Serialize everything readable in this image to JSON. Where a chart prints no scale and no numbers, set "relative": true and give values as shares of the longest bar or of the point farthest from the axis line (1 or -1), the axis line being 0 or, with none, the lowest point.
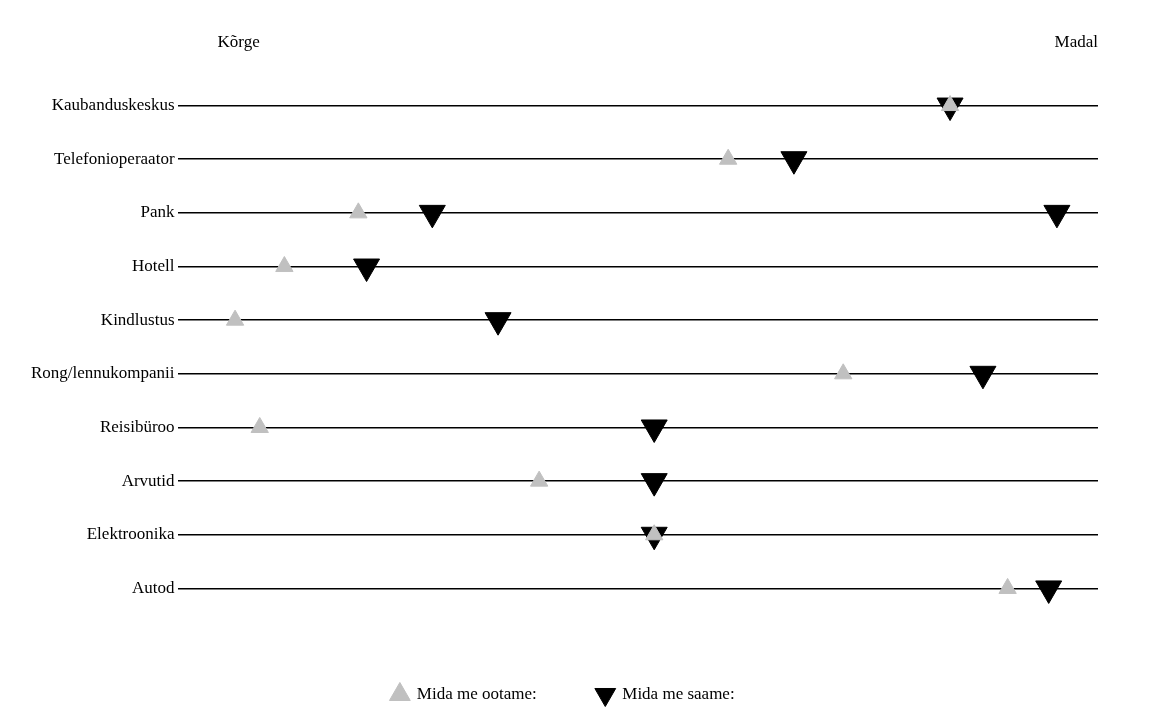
{
  "chart_data": {
    "type": "scatter",
    "orientation": "horizontal",
    "relative": true,
    "categories": [
      "Kaubanduskeskus",
      "Telefonioperaator",
      "Pank",
      "Hotell",
      "Kindlustus",
      "Rong/lennukompanii",
      "Reisibüroo",
      "Arvutid",
      "Elektroonika",
      "Autod"
    ],
    "annotations": [
      "Kõrge",
      "Madal"
    ],
    "series": [
      {
        "name": "Mida me ootame:",
        "color": "#c0c0c0",
        "values": [
          0.87,
          0.6,
          0.15,
          0.06,
          0,
          0.74,
          0.03,
          0.37,
          0.51,
          0.94
        ]
      },
      {
        "name": "Mida me saame:",
        "color": "#000000",
        "values": [
          0.87,
          0.68,
          0.24,
          0.16,
          0.32,
          0.91,
          0.51,
          0.51,
          0.51,
          0.99
        ]
      },
      {
        "color": "#000000",
        "values": [
          null,
          null,
          1,
          null,
          null,
          null,
          null,
          null,
          null,
          null
        ]
      }
    ],
    "marker": "triangle",
    "grid": "y",
    "legend": "bottom"
  }
}
